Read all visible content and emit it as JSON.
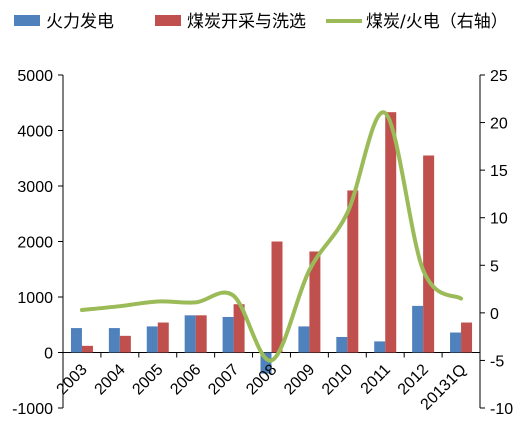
{
  "chart_data": {
    "type": "bar",
    "categories": [
      "2003",
      "2004",
      "2005",
      "2006",
      "2007",
      "2008",
      "2009",
      "2010",
      "2011",
      "2012",
      "20131Q"
    ],
    "series": [
      {
        "name": "火力发电",
        "kind": "bar",
        "axis": "left",
        "color": "#4F81BD",
        "values": [
          440,
          440,
          470,
          670,
          640,
          -380,
          470,
          280,
          200,
          840,
          360
        ]
      },
      {
        "name": "煤炭开采与洗选",
        "kind": "bar",
        "axis": "left",
        "color": "#C0504D",
        "values": [
          120,
          300,
          540,
          670,
          870,
          2000,
          1820,
          2920,
          4330,
          3550,
          540
        ]
      },
      {
        "name": "煤炭/火电（右轴）",
        "kind": "line",
        "axis": "right",
        "color": "#9BBB59",
        "values": [
          0.3,
          0.7,
          1.2,
          1.1,
          1.8,
          -5.0,
          4.5,
          10.5,
          21.0,
          4.5,
          1.5
        ]
      }
    ],
    "left_axis": {
      "ylim": [
        -1000,
        5000
      ],
      "ticks": [
        "-1000",
        "0",
        "1000",
        "2000",
        "3000",
        "4000",
        "5000"
      ]
    },
    "right_axis": {
      "ylim": [
        -10,
        25
      ],
      "ticks": [
        "-10",
        "-5",
        "0",
        "5",
        "10",
        "15",
        "20",
        "25"
      ]
    },
    "grid": false,
    "legend_position": "top"
  }
}
